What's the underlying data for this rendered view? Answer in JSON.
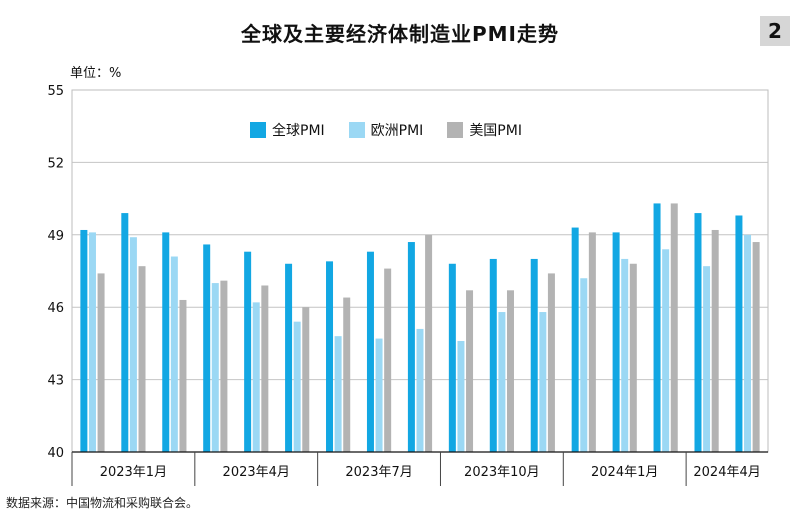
{
  "title": "全球及主要经济体制造业PMI走势",
  "figure_number": "2",
  "unit_label": "单位：%",
  "source": "数据来源：中国物流和采购联合会。",
  "chart_data": {
    "type": "bar",
    "ylim": [
      40,
      55
    ],
    "yticks": [
      40,
      43,
      46,
      49,
      52,
      55
    ],
    "grid": true,
    "legend_position": "top-center",
    "categories": [
      "2023-01",
      "2023-02",
      "2023-03",
      "2023-04",
      "2023-05",
      "2023-06",
      "2023-07",
      "2023-08",
      "2023-09",
      "2023-10",
      "2023-11",
      "2023-12",
      "2024-01",
      "2024-02",
      "2024-03",
      "2024-04",
      "2024-05"
    ],
    "xtick_labels": [
      {
        "label": "2023年1月",
        "index": 1
      },
      {
        "label": "2023年4月",
        "index": 4
      },
      {
        "label": "2023年7月",
        "index": 7
      },
      {
        "label": "2023年10月",
        "index": 10
      },
      {
        "label": "2024年1月",
        "index": 13
      },
      {
        "label": "2024年4月",
        "index": 16
      }
    ],
    "series": [
      {
        "name": "全球PMI",
        "color": "#12a7e3",
        "values": [
          49.2,
          49.9,
          49.1,
          48.6,
          48.3,
          47.8,
          47.9,
          48.3,
          48.7,
          47.8,
          48.0,
          48.0,
          49.3,
          49.1,
          50.3,
          49.9,
          49.8
        ]
      },
      {
        "name": "欧洲PMI",
        "color": "#9bd8f4",
        "values": [
          49.1,
          48.9,
          48.1,
          47.0,
          46.2,
          45.4,
          44.8,
          44.7,
          45.1,
          44.6,
          45.8,
          45.8,
          47.2,
          48.0,
          48.4,
          47.7,
          49.0
        ]
      },
      {
        "name": "美国PMI",
        "color": "#b3b3b3",
        "values": [
          47.4,
          47.7,
          46.3,
          47.1,
          46.9,
          46.0,
          46.4,
          47.6,
          49.0,
          46.7,
          46.7,
          47.4,
          49.1,
          47.8,
          50.3,
          49.2,
          48.7
        ]
      }
    ]
  }
}
